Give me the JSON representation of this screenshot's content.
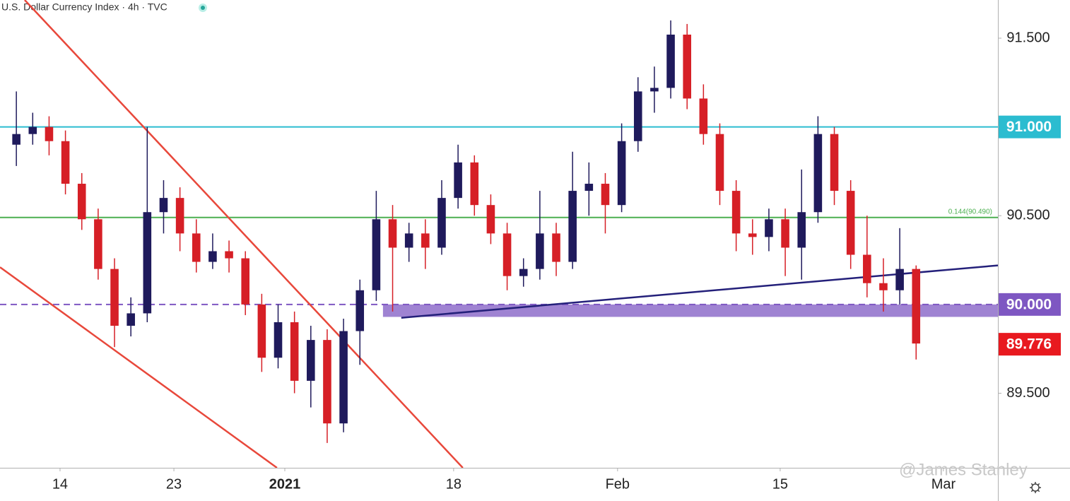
{
  "chart_data": {
    "type": "candlestick",
    "title": "U.S. Dollar Currency Index · 4h · TVC",
    "watermark": "@James Stanley",
    "x": [
      1,
      2,
      3,
      4,
      5,
      6,
      7,
      8,
      9,
      10,
      11,
      12,
      13,
      14,
      15,
      16,
      17,
      18,
      19,
      20,
      21,
      22,
      23,
      24,
      25,
      26,
      27,
      28,
      29,
      30,
      31,
      32,
      33,
      34,
      35,
      36,
      37,
      38,
      39,
      40,
      41,
      42,
      43,
      44,
      45,
      46,
      47,
      48,
      49,
      50,
      51,
      52,
      53,
      54,
      55,
      56
    ],
    "open": [
      90.9,
      90.96,
      91.0,
      90.92,
      90.68,
      90.48,
      90.2,
      89.88,
      89.95,
      90.52,
      90.6,
      90.4,
      90.24,
      90.3,
      90.26,
      90.0,
      89.7,
      89.9,
      89.57,
      89.8,
      89.33,
      89.85,
      90.08,
      90.48,
      90.32,
      90.4,
      90.32,
      90.6,
      90.8,
      90.56,
      90.4,
      90.16,
      90.2,
      90.4,
      90.24,
      90.64,
      90.68,
      90.56,
      90.92,
      91.2,
      91.22,
      91.52,
      91.16,
      90.96,
      90.64,
      90.4,
      90.38,
      90.48,
      90.32,
      90.52,
      90.96,
      90.64,
      90.28,
      90.12,
      90.08,
      90.2
    ],
    "high": [
      91.2,
      91.08,
      91.06,
      90.98,
      90.74,
      90.54,
      90.26,
      90.04,
      91.0,
      90.7,
      90.66,
      90.48,
      90.4,
      90.36,
      90.3,
      90.06,
      90.0,
      89.96,
      89.88,
      89.86,
      89.92,
      90.14,
      90.64,
      90.56,
      90.46,
      90.48,
      90.7,
      90.9,
      90.84,
      90.62,
      90.46,
      90.26,
      90.64,
      90.46,
      90.86,
      90.8,
      90.74,
      91.02,
      91.28,
      91.34,
      91.6,
      91.58,
      91.24,
      91.02,
      90.7,
      90.48,
      90.54,
      90.54,
      90.76,
      91.06,
      91.0,
      90.7,
      90.5,
      90.26,
      90.43,
      90.22
    ],
    "low": [
      90.78,
      90.9,
      90.84,
      90.62,
      90.42,
      90.14,
      89.76,
      89.82,
      89.9,
      90.4,
      90.3,
      90.18,
      90.2,
      90.18,
      89.94,
      89.62,
      89.64,
      89.5,
      89.42,
      89.22,
      89.28,
      89.66,
      90.02,
      89.96,
      90.24,
      90.2,
      90.28,
      90.54,
      90.5,
      90.34,
      90.08,
      90.1,
      90.14,
      90.16,
      90.2,
      90.5,
      90.4,
      90.52,
      90.86,
      91.08,
      91.16,
      91.1,
      90.9,
      90.56,
      90.3,
      90.28,
      90.3,
      90.16,
      90.14,
      90.46,
      90.56,
      90.2,
      90.04,
      89.96,
      90.0,
      89.69
    ],
    "close": [
      90.96,
      91.0,
      90.92,
      90.68,
      90.48,
      90.2,
      89.88,
      89.95,
      90.52,
      90.6,
      90.4,
      90.24,
      90.3,
      90.26,
      90.0,
      89.7,
      89.9,
      89.57,
      89.8,
      89.33,
      89.85,
      90.08,
      90.48,
      90.32,
      90.4,
      90.32,
      90.6,
      90.8,
      90.56,
      90.4,
      90.16,
      90.2,
      90.4,
      90.24,
      90.64,
      90.68,
      90.56,
      90.92,
      91.2,
      91.22,
      91.52,
      91.16,
      90.96,
      90.64,
      90.4,
      90.38,
      90.48,
      90.32,
      90.52,
      90.96,
      90.64,
      90.28,
      90.12,
      90.08,
      90.2,
      89.78
    ],
    "up_color": "#1f1a5c",
    "down_color": "#d61f26",
    "xlim": [
      0,
      61
    ],
    "xticks": [
      {
        "value": 3.67,
        "label": "14"
      },
      {
        "value": 10.63,
        "label": "23"
      },
      {
        "value": 17.41,
        "label": "2021",
        "bold": true
      },
      {
        "value": 27.73,
        "label": "18"
      },
      {
        "value": 37.75,
        "label": "Feb"
      },
      {
        "value": 47.69,
        "label": "15"
      },
      {
        "value": 57.67,
        "label": "Mar"
      }
    ],
    "ylim": [
      89.08,
      91.715
    ],
    "yticks": [
      {
        "value": 89.5,
        "label": "89.500"
      },
      {
        "value": 90.5,
        "label": "90.500"
      },
      {
        "value": 91.5,
        "label": "91.500"
      }
    ],
    "hlines": [
      {
        "value": 91,
        "label": "91.000",
        "color": "#2bbcd0"
      },
      {
        "value": 90.49,
        "note": "0.144(90.490)",
        "color": "#4caf50"
      },
      {
        "value": 90,
        "label": "90.000",
        "color": "#7e57c2",
        "dashed": true
      }
    ],
    "zone": {
      "from": 89.93,
      "to": 90,
      "x_start": 23.41,
      "color": "#9575cd"
    },
    "trendlines": [
      {
        "x": [
          1.51,
          28.29
        ],
        "y": [
          91.715,
          89.08
        ],
        "color": "#e8483b"
      },
      {
        "x": [
          0,
          16.93
        ],
        "y": [
          90.21,
          89.08
        ],
        "color": "#e8483b"
      },
      {
        "x": [
          24.53,
          61
        ],
        "y": [
          89.925,
          90.22
        ],
        "color": "#24207a"
      }
    ],
    "last_price": {
      "value": 89.776,
      "color": "#e8191f"
    }
  }
}
